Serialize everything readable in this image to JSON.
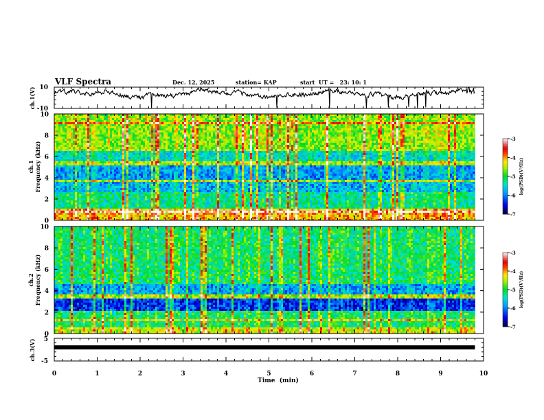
{
  "header": {
    "title": "VLF Spectra",
    "date": "Dec. 12, 2025",
    "station": "station= KAP",
    "start_ut": "start  UT =   23: 10: 1"
  },
  "chart_data": [
    {
      "id": "ch1-waveform",
      "type": "line",
      "ylabel": "ch.1(V)",
      "ylim": [
        -10,
        10
      ],
      "yticks": [
        "10",
        "-10"
      ],
      "xlim": [
        0,
        10
      ],
      "data_end_min": 9.8,
      "description_values": "noisy waveform around 0 to 5 V"
    },
    {
      "id": "ch1-spectrogram",
      "type": "heatmap",
      "ylabel_top": "ch.1",
      "ylabel": "Frequency (kHz)",
      "ylim": [
        0,
        10
      ],
      "yticks": [
        "0",
        "2",
        "4",
        "6",
        "8",
        "10"
      ],
      "xlim": [
        0,
        10
      ],
      "data_end_min": 9.8,
      "colorbar": {
        "label": "log(PSD)(V²/Hz)",
        "range": [
          -7,
          -3
        ],
        "ticks": [
          "-3",
          "-4",
          "-5",
          "-6",
          "-7"
        ]
      },
      "bands_khz": [
        {
          "from": 0,
          "to": 1.2,
          "level": -4.2
        },
        {
          "from": 1.2,
          "to": 2.6,
          "level": -5.3
        },
        {
          "from": 2.6,
          "to": 3.6,
          "level": -5.8
        },
        {
          "from": 3.6,
          "to": 3.9,
          "level": -4.6
        },
        {
          "from": 3.9,
          "to": 5.1,
          "level": -5.9
        },
        {
          "from": 5.1,
          "to": 5.5,
          "level": -4.6
        },
        {
          "from": 5.5,
          "to": 6.6,
          "level": -5.5
        },
        {
          "from": 6.6,
          "to": 10,
          "level": -4.7
        }
      ]
    },
    {
      "id": "ch2-spectrogram",
      "type": "heatmap",
      "ylabel_top": "ch.2",
      "ylabel": "Frequency (kHz)",
      "ylim": [
        0,
        10
      ],
      "yticks": [
        "0",
        "2",
        "4",
        "6",
        "8",
        "10"
      ],
      "xlim": [
        0,
        10
      ],
      "data_end_min": 9.8,
      "colorbar": {
        "label": "log(PSD)(V²/Hz)",
        "range": [
          -7,
          -3
        ],
        "ticks": [
          "-3",
          "-4",
          "-5",
          "-6",
          "-7"
        ]
      },
      "bands_khz": [
        {
          "from": 0,
          "to": 0.6,
          "level": -4.5
        },
        {
          "from": 0.6,
          "to": 2.1,
          "level": -5.2
        },
        {
          "from": 2.1,
          "to": 3.2,
          "level": -6.4
        },
        {
          "from": 3.2,
          "to": 3.6,
          "level": -4.6
        },
        {
          "from": 3.6,
          "to": 4.6,
          "level": -5.9
        },
        {
          "from": 4.6,
          "to": 10,
          "level": -5.2
        }
      ]
    },
    {
      "id": "ch3-waveform",
      "type": "line",
      "ylabel": "ch.3(V)",
      "ylim": [
        -5,
        5
      ],
      "yticks": [
        "5",
        "-5"
      ],
      "xlim": [
        0,
        10
      ],
      "data_end_min": 9.8,
      "constant_value_v": 1
    }
  ],
  "xaxis": {
    "label": "Time  (min)",
    "ticks": [
      "0",
      "1",
      "2",
      "3",
      "4",
      "5",
      "6",
      "7",
      "8",
      "9",
      "10"
    ]
  }
}
